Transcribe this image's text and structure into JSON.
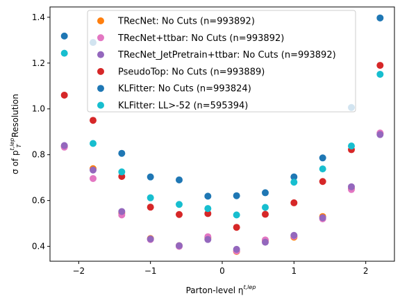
{
  "chart_data": {
    "type": "scatter",
    "title": "",
    "xlabel_main": "Parton-level η",
    "xlabel_sup": "t,lep",
    "ylabel_main": "σ of p",
    "ylabel_sub": "T",
    "ylabel_sup": "t,lep",
    "ylabel_tail": " Resolution",
    "xlim": [
      -2.4,
      2.4
    ],
    "ylim": [
      0.335,
      1.445
    ],
    "xticks": [
      -2,
      -1,
      0,
      1,
      2
    ],
    "xtick_labels": [
      "−2",
      "−1",
      "0",
      "1",
      "2"
    ],
    "yticks": [
      0.4,
      0.6,
      0.8,
      1.0,
      1.2,
      1.4
    ],
    "ytick_labels": [
      "0.4",
      "0.6",
      "0.8",
      "1.0",
      "1.2",
      "1.4"
    ],
    "grid": false,
    "legend_position": "top-center",
    "x": [
      -2.2,
      -1.8,
      -1.4,
      -1.0,
      -0.6,
      -0.2,
      0.2,
      0.6,
      1.0,
      1.4,
      1.8,
      2.2
    ],
    "series": [
      {
        "name": "TRecNet: No Cuts (n=993892)",
        "color": "#ff7f0e",
        "values": [
          0.838,
          0.739,
          0.545,
          0.434,
          0.403,
          0.437,
          0.378,
          0.425,
          0.44,
          0.53,
          0.652,
          0.893
        ]
      },
      {
        "name": "TRecNet+ttbar: No Cuts (n=993892)",
        "color": "#e377c2",
        "values": [
          0.833,
          0.696,
          0.537,
          0.43,
          0.4,
          0.442,
          0.38,
          0.428,
          0.444,
          0.52,
          0.648,
          0.895
        ]
      },
      {
        "name": "TRecNet_JetPretrain+ttbar: No Cuts (n=993892)",
        "color": "#9467bd",
        "values": [
          0.84,
          0.733,
          0.552,
          0.432,
          0.403,
          0.43,
          0.387,
          0.418,
          0.448,
          0.525,
          0.66,
          0.888
        ]
      },
      {
        "name": "PseudoTop: No Cuts (n=993889)",
        "color": "#d62728",
        "values": [
          1.06,
          0.95,
          0.705,
          0.571,
          0.539,
          0.543,
          0.483,
          0.54,
          0.59,
          0.683,
          0.822,
          1.19
        ]
      },
      {
        "name": "KLFitter: No Cuts (n=993824)",
        "color": "#1f77b4",
        "values": [
          1.318,
          1.29,
          0.806,
          0.703,
          0.69,
          0.619,
          0.621,
          0.634,
          0.703,
          0.786,
          1.006,
          1.397
        ]
      },
      {
        "name": "KLFitter: LL>-52 (n=595394)",
        "color": "#17becf",
        "values": [
          1.243,
          0.849,
          0.725,
          0.612,
          0.583,
          0.565,
          0.537,
          0.57,
          0.68,
          0.738,
          0.838,
          1.151
        ]
      }
    ]
  }
}
